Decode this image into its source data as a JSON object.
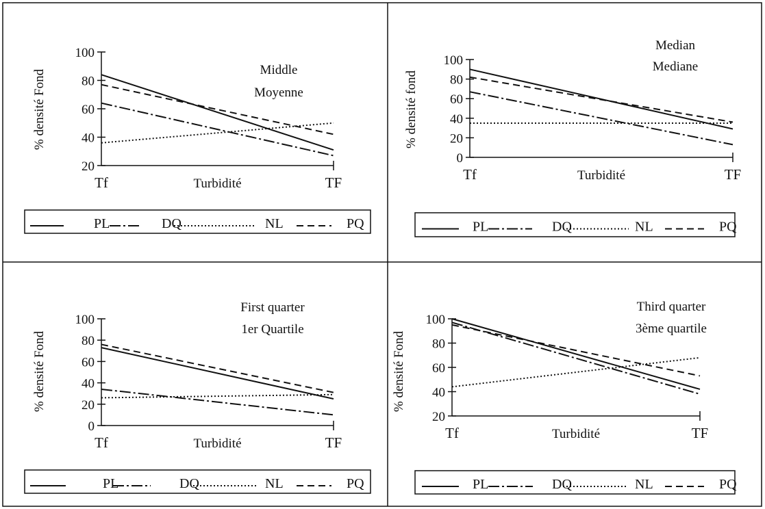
{
  "figure": {
    "series_names": [
      "PL",
      "DQ",
      "NL",
      "PQ"
    ]
  },
  "chart_data": [
    {
      "type": "line",
      "title": "Middle",
      "subtitle": "Moyenne",
      "ylabel": "% densité Fond",
      "xlabel": "Turbidité",
      "categories": [
        "Tf",
        "TF"
      ],
      "ylim": [
        20,
        100
      ],
      "yticks": [
        20,
        40,
        60,
        80,
        100
      ],
      "legend": "bottom",
      "grid": false,
      "series": [
        {
          "name": "PL",
          "values": [
            84,
            31
          ]
        },
        {
          "name": "DQ",
          "values": [
            64,
            27
          ]
        },
        {
          "name": "NL",
          "values": [
            36,
            50
          ]
        },
        {
          "name": "PQ",
          "values": [
            77,
            42
          ]
        }
      ]
    },
    {
      "type": "line",
      "title": "Median",
      "subtitle": "Mediane",
      "ylabel": "% densité fond",
      "xlabel": "Turbidité",
      "categories": [
        "Tf",
        "TF"
      ],
      "ylim": [
        0,
        100
      ],
      "yticks": [
        0,
        20,
        40,
        60,
        80,
        100
      ],
      "legend": "bottom",
      "grid": false,
      "series": [
        {
          "name": "PL",
          "values": [
            90,
            29
          ]
        },
        {
          "name": "DQ",
          "values": [
            67,
            13
          ]
        },
        {
          "name": "NL",
          "values": [
            35,
            35
          ]
        },
        {
          "name": "PQ",
          "values": [
            82,
            36
          ]
        }
      ]
    },
    {
      "type": "line",
      "title": "First quarter",
      "subtitle": "1er Quartile",
      "ylabel": "% densité Fond",
      "xlabel": "Turbidité",
      "categories": [
        "Tf",
        "TF"
      ],
      "ylim": [
        0,
        100
      ],
      "yticks": [
        0,
        20,
        40,
        60,
        80,
        100
      ],
      "legend": "bottom",
      "grid": false,
      "series": [
        {
          "name": "PL",
          "values": [
            73,
            25
          ]
        },
        {
          "name": "DQ",
          "values": [
            34,
            10
          ]
        },
        {
          "name": "NL",
          "values": [
            26,
            29
          ]
        },
        {
          "name": "PQ",
          "values": [
            76,
            31
          ]
        }
      ]
    },
    {
      "type": "line",
      "title": "Third quarter",
      "subtitle": "3ème quartile",
      "ylabel": "% densité Fond",
      "xlabel": "Turbidité",
      "categories": [
        "Tf",
        "TF"
      ],
      "ylim": [
        20,
        100
      ],
      "yticks": [
        20,
        40,
        60,
        80,
        100
      ],
      "legend": "bottom",
      "grid": false,
      "series": [
        {
          "name": "PL",
          "values": [
            100,
            42
          ]
        },
        {
          "name": "DQ",
          "values": [
            97,
            38
          ]
        },
        {
          "name": "NL",
          "values": [
            44,
            68
          ]
        },
        {
          "name": "PQ",
          "values": [
            95,
            53
          ]
        }
      ]
    }
  ]
}
